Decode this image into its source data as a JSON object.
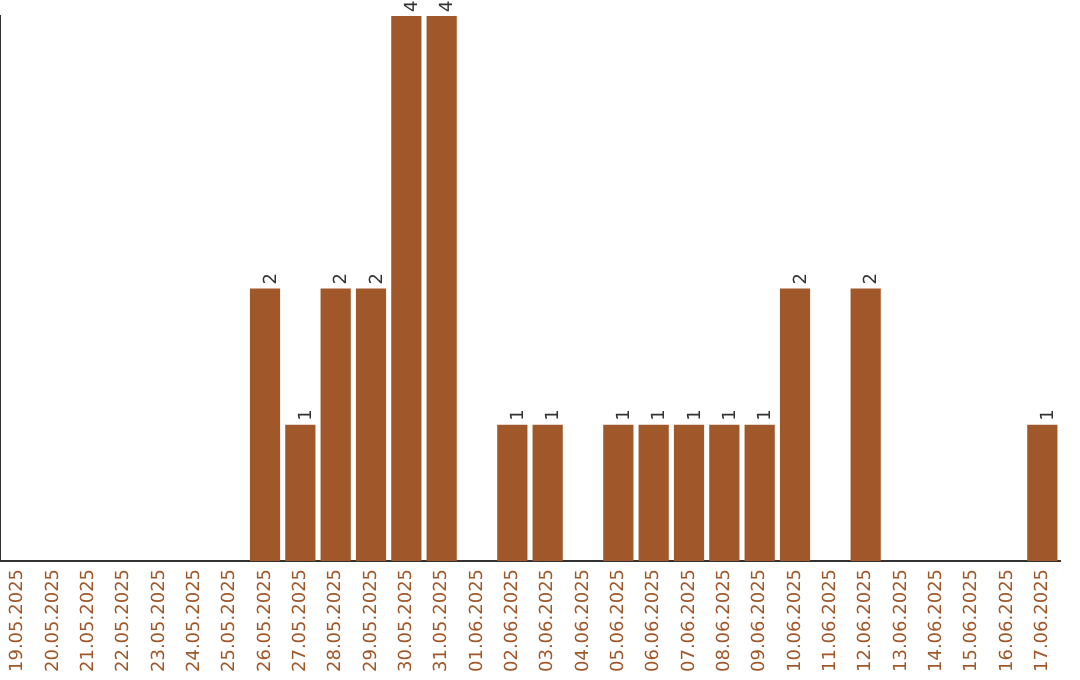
{
  "chart_data": {
    "type": "bar",
    "categories": [
      "19.05.2025",
      "20.05.2025",
      "21.05.2025",
      "22.05.2025",
      "23.05.2025",
      "24.05.2025",
      "25.05.2025",
      "26.05.2025",
      "27.05.2025",
      "28.05.2025",
      "29.05.2025",
      "30.05.2025",
      "31.05.2025",
      "01.06.2025",
      "02.06.2025",
      "03.06.2025",
      "04.06.2025",
      "05.06.2025",
      "06.06.2025",
      "07.06.2025",
      "08.06.2025",
      "09.06.2025",
      "10.06.2025",
      "11.06.2025",
      "12.06.2025",
      "13.06.2025",
      "14.06.2025",
      "15.06.2025",
      "16.06.2025",
      "17.06.2025"
    ],
    "values": [
      0,
      0,
      0,
      0,
      0,
      0,
      0,
      2,
      1,
      2,
      2,
      4,
      4,
      0,
      1,
      1,
      0,
      1,
      1,
      1,
      1,
      1,
      2,
      0,
      2,
      0,
      0,
      0,
      0,
      1
    ],
    "value_labels": [
      null,
      null,
      null,
      null,
      null,
      null,
      null,
      "2",
      "1",
      "2",
      "2",
      "4",
      "4",
      null,
      "1",
      "1",
      null,
      "1",
      "1",
      "1",
      "1",
      "1",
      "2",
      null,
      "2",
      null,
      null,
      null,
      null,
      "1"
    ],
    "color": "#a0582a",
    "ylim": [
      0,
      4
    ],
    "tick_labels": "x",
    "grid": false,
    "legend": false
  }
}
